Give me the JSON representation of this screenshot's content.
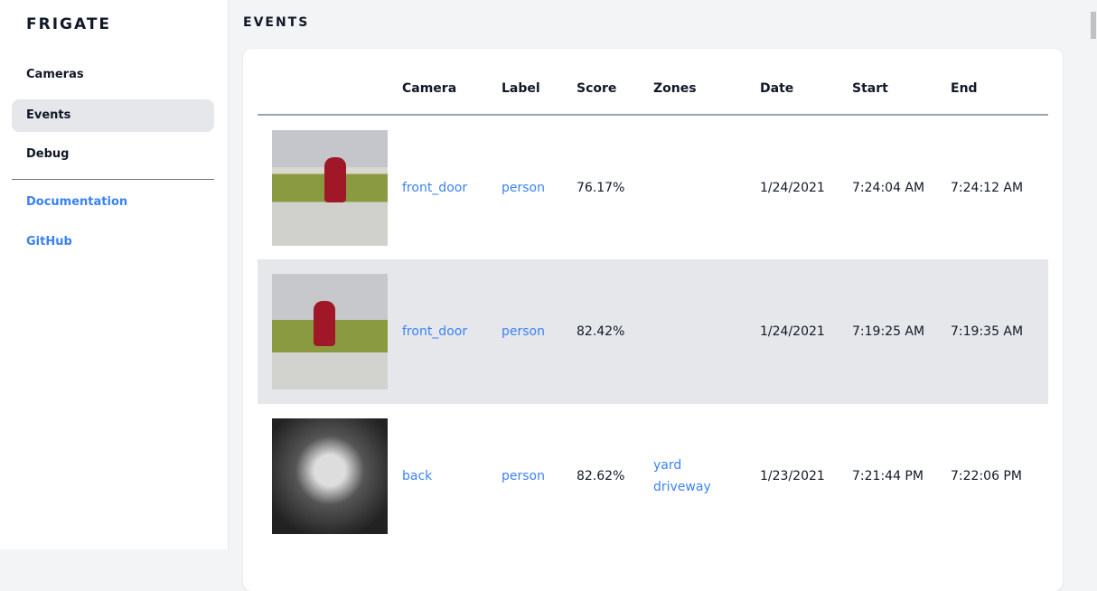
{
  "sidebar": {
    "brand": "FRIGATE",
    "items": [
      {
        "label": "Cameras"
      },
      {
        "label": "Events",
        "active": true
      },
      {
        "label": "Debug"
      }
    ],
    "links": [
      {
        "label": "Documentation"
      },
      {
        "label": "GitHub"
      }
    ]
  },
  "page": {
    "title": "EVENTS"
  },
  "table": {
    "headers": [
      "",
      "Camera",
      "Label",
      "Score",
      "Zones",
      "Date",
      "Start",
      "End"
    ],
    "rows": [
      {
        "camera": "front_door",
        "label": "person",
        "score": "76.17%",
        "zones": [
          "",
          ""
        ],
        "date": "1/24/2021",
        "start": "7:24:04 AM",
        "end": "7:24:12 AM"
      },
      {
        "camera": "front_door",
        "label": "person",
        "score": "82.42%",
        "zones": [
          "",
          ""
        ],
        "date": "1/24/2021",
        "start": "7:19:25 AM",
        "end": "7:19:35 AM"
      },
      {
        "camera": "back",
        "label": "person",
        "score": "82.62%",
        "zones": [
          "yard",
          "driveway"
        ],
        "date": "1/23/2021",
        "start": "7:21:44 PM",
        "end": "7:22:06 PM"
      }
    ]
  },
  "colors": {
    "link": "#3b82f6",
    "active_bg": "#e5e7eb",
    "text": "#111827"
  }
}
